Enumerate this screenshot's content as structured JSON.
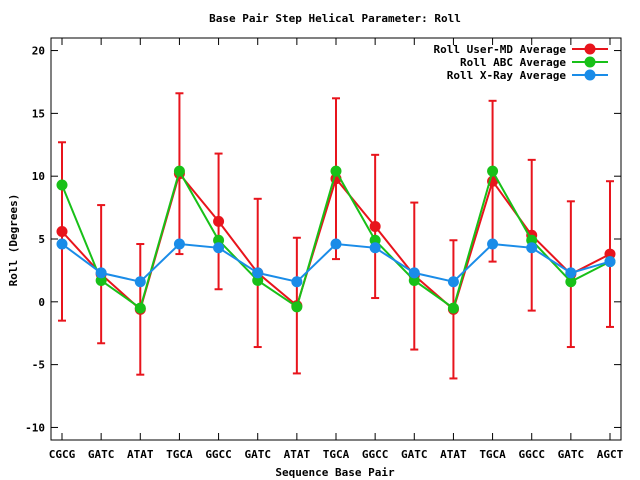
{
  "chart_data": {
    "type": "line",
    "title": "Base Pair Step Helical Parameter: Roll",
    "xlabel": "Sequence Base Pair",
    "ylabel": "Roll (Degrees)",
    "categories": [
      "CGCG",
      "GATC",
      "ATAT",
      "TGCA",
      "GGCC",
      "GATC",
      "ATAT",
      "TGCA",
      "GGCC",
      "GATC",
      "ATAT",
      "TGCA",
      "GGCC",
      "GATC",
      "AGCT"
    ],
    "ylim": [
      -11,
      21
    ],
    "yticks": [
      -10,
      -5,
      0,
      5,
      10,
      15,
      20
    ],
    "grid": false,
    "legend_position": "top-right",
    "series": [
      {
        "name": "Roll User-MD Average",
        "color": "#e8141c",
        "values": [
          5.6,
          2.2,
          -0.6,
          10.2,
          6.4,
          2.3,
          -0.3,
          9.8,
          6.0,
          2.1,
          -0.6,
          9.6,
          5.3,
          2.2,
          3.8
        ],
        "error_high": [
          12.7,
          7.7,
          4.6,
          16.6,
          11.8,
          8.2,
          5.1,
          16.2,
          11.7,
          7.9,
          4.9,
          16.0,
          11.3,
          8.0,
          9.6
        ],
        "error_low": [
          -1.5,
          -3.3,
          -5.8,
          3.8,
          1.0,
          -3.6,
          -5.7,
          3.4,
          0.3,
          -3.8,
          -6.1,
          3.2,
          -0.7,
          -3.6,
          -2.0
        ]
      },
      {
        "name": "Roll ABC Average",
        "color": "#18c018",
        "values": [
          9.3,
          1.7,
          -0.5,
          10.4,
          4.9,
          1.7,
          -0.4,
          10.4,
          4.9,
          1.7,
          -0.5,
          10.4,
          4.9,
          1.6,
          3.2
        ]
      },
      {
        "name": "Roll X-Ray Average",
        "color": "#1a8ce8",
        "values": [
          4.6,
          2.3,
          1.6,
          4.6,
          4.3,
          2.3,
          1.6,
          4.6,
          4.3,
          2.3,
          1.6,
          4.6,
          4.3,
          2.3,
          3.2
        ]
      }
    ]
  }
}
